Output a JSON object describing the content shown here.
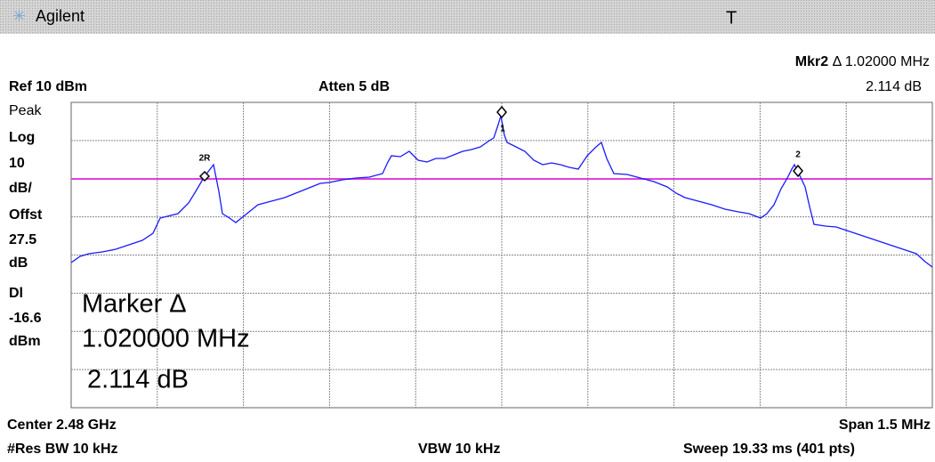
{
  "header": {
    "brand": "Agilent",
    "flag": "T"
  },
  "marker": {
    "name": "Mkr2",
    "readout": "Δ  1.02000 MHz",
    "amplitude": "2.114 dB"
  },
  "settings": {
    "ref": "Ref 10 dBm",
    "atten": "Atten 5 dB"
  },
  "left_panel": [
    "Peak",
    "Log",
    "10",
    "dB/",
    "Offst",
    "27.5",
    "dB",
    "Dl",
    "-16.6",
    "dBm"
  ],
  "overlay": [
    "Marker Δ",
    "1.020000 MHz",
    "2.114 dB"
  ],
  "marker_labels": [
    "2R",
    "1",
    "2"
  ],
  "footer": {
    "center": "Center 2.48 GHz",
    "span": "Span 1.5 MHz",
    "rbw": "#Res BW 10 kHz",
    "vbw": "VBW 10 kHz",
    "sweep": "Sweep 19.33 ms (401 pts)"
  }
}
